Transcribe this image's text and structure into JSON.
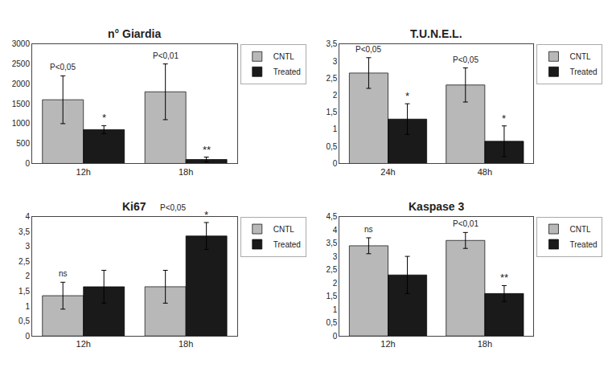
{
  "chart_data": [
    {
      "type": "bar",
      "title": "n° Giardia",
      "categories": [
        "12h",
        "18h"
      ],
      "series": [
        {
          "name": "CNTL",
          "color": "#b8b8b8",
          "values": [
            1600,
            1800
          ],
          "error": [
            600,
            700
          ]
        },
        {
          "name": "Treated",
          "color": "#1a1a1a",
          "values": [
            850,
            100
          ],
          "error": [
            100,
            60
          ]
        }
      ],
      "ylim": [
        0,
        3000
      ],
      "yticks": [
        0,
        500,
        1000,
        1500,
        2000,
        2500,
        3000
      ],
      "annotations": [
        {
          "text": "P<0,05",
          "category": "12h",
          "series": "CNTL"
        },
        {
          "text": "*",
          "category": "12h",
          "series": "Treated"
        },
        {
          "text": "P<0,01",
          "category": "18h",
          "series": "CNTL"
        },
        {
          "text": "**",
          "category": "18h",
          "series": "Treated"
        }
      ],
      "grid": false,
      "legend": "upper right"
    },
    {
      "type": "bar",
      "title": "T.U.N.E.L.",
      "categories": [
        "24h",
        "48h"
      ],
      "series": [
        {
          "name": "CNTL",
          "color": "#b8b8b8",
          "values": [
            2.65,
            2.3
          ],
          "error": [
            0.45,
            0.5
          ]
        },
        {
          "name": "Treated",
          "color": "#1a1a1a",
          "values": [
            1.3,
            0.65
          ],
          "error": [
            0.45,
            0.45
          ]
        }
      ],
      "ylim": [
        0,
        3.5
      ],
      "yticks": [
        0,
        {
          "value": 0.5,
          "label": "0,5"
        },
        1,
        {
          "value": 1.5,
          "label": "1,5"
        },
        2,
        {
          "value": 2.5,
          "label": "2,5"
        },
        3,
        {
          "value": 3.5,
          "label": "3,5"
        }
      ],
      "annotations": [
        {
          "text": "P<0,05",
          "category": "24h",
          "series": "CNTL"
        },
        {
          "text": "*",
          "category": "24h",
          "series": "Treated"
        },
        {
          "text": "P<0,05",
          "category": "48h",
          "series": "CNTL"
        },
        {
          "text": "*",
          "category": "48h",
          "series": "Treated"
        }
      ],
      "grid": false,
      "legend": "upper right"
    },
    {
      "type": "bar",
      "title": "Ki67",
      "categories": [
        "12h",
        "18h"
      ],
      "series": [
        {
          "name": "CNTL",
          "color": "#b8b8b8",
          "values": [
            1.35,
            1.65
          ],
          "error": [
            0.45,
            0.55
          ]
        },
        {
          "name": "Treated",
          "color": "#1a1a1a",
          "values": [
            1.65,
            3.35
          ],
          "error": [
            0.55,
            0.45
          ]
        }
      ],
      "ylim": [
        0,
        4
      ],
      "yticks": [
        0,
        {
          "value": 0.5,
          "label": "0,5"
        },
        1,
        {
          "value": 1.5,
          "label": "1,5"
        },
        2,
        {
          "value": 2.5,
          "label": "2,5"
        },
        3,
        {
          "value": 3.5,
          "label": "3,5"
        },
        4
      ],
      "annotations": [
        {
          "text": "ns",
          "category": "12h",
          "series": "CNTL"
        },
        {
          "text": "*",
          "category": "18h",
          "series": "Treated"
        },
        {
          "text": "P<0,05"
        }
      ],
      "grid": false,
      "legend": "upper right"
    },
    {
      "type": "bar",
      "title": "Kaspase 3",
      "categories": [
        "12h",
        "18h"
      ],
      "series": [
        {
          "name": "CNTL",
          "color": "#b8b8b8",
          "values": [
            3.4,
            3.6
          ],
          "error": [
            0.3,
            0.3
          ]
        },
        {
          "name": "Treated",
          "color": "#1a1a1a",
          "values": [
            2.3,
            1.6
          ],
          "error": [
            0.7,
            0.3
          ]
        }
      ],
      "ylim": [
        0,
        4.5
      ],
      "yticks": [
        0,
        {
          "value": 0.5,
          "label": "0,5"
        },
        1,
        {
          "value": 1.5,
          "label": "1,5"
        },
        2,
        {
          "value": 2.5,
          "label": "2,5"
        },
        3,
        {
          "value": 3.5,
          "label": "3,5"
        },
        4,
        {
          "value": 4.5,
          "label": "4,5"
        }
      ],
      "annotations": [
        {
          "text": "ns",
          "category": "12h",
          "series": "CNTL"
        },
        {
          "text": "P<0,01",
          "category": "18h",
          "series": "CNTL"
        },
        {
          "text": "**",
          "category": "18h",
          "series": "Treated"
        }
      ],
      "grid": false,
      "legend": "upper right"
    }
  ]
}
